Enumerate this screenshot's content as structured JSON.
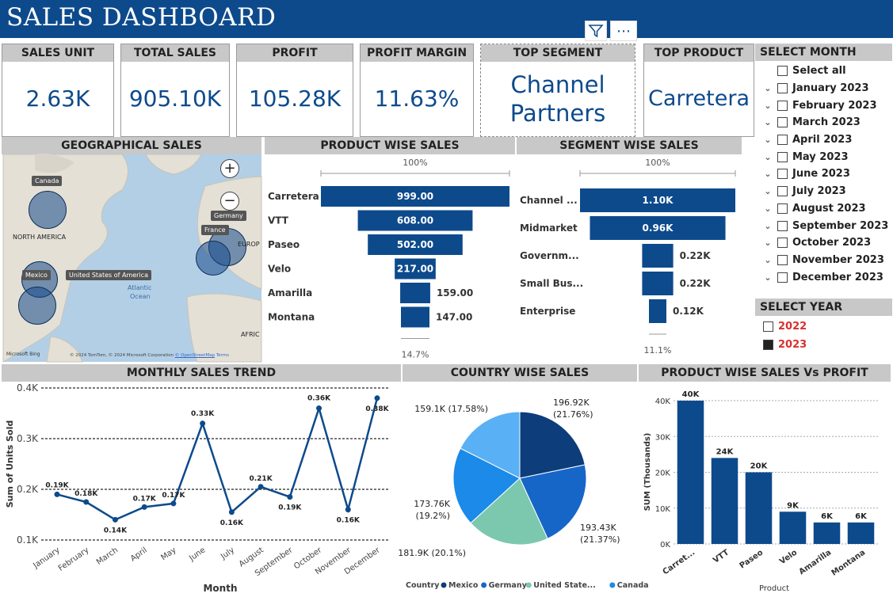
{
  "header": {
    "title": "SALES DASHBOARD",
    "filter_icon": "filter-icon",
    "more_label": "⋯"
  },
  "kpis": [
    {
      "label": "SALES UNIT",
      "value": "2.63K"
    },
    {
      "label": "TOTAL SALES",
      "value": "905.10K"
    },
    {
      "label": "PROFIT",
      "value": "105.28K"
    },
    {
      "label": "PROFIT MARGIN",
      "value": "11.63%"
    },
    {
      "label": "TOP SEGMENT",
      "value": "Channel Partners"
    },
    {
      "label": "TOP PRODUCT",
      "value": "Carretera"
    }
  ],
  "sections": {
    "geo": "GEOGRAPHICAL SALES",
    "product": "PRODUCT WISE SALES",
    "segment": "SEGMENT WISE SALES",
    "monthly": "MONTHLY SALES TREND",
    "country": "COUNTRY WISE SALES",
    "prodprofit": "PRODUCT WISE SALES Vs PROFIT"
  },
  "map": {
    "labels": [
      "Canada",
      "NORTH AMERICA",
      "Germany",
      "France",
      "EUROP",
      "Mexico",
      "United States of America",
      "Atlantic",
      "Ocean",
      "AFRIC"
    ],
    "zoom_in": "+",
    "zoom_out": "−",
    "logo": "Microsoft Bing",
    "copyright": "© 2024 TomTom, © 2024 Microsoft Corporation",
    "osm": "© OpenStreetMap",
    "terms": "Terms"
  },
  "month_slicer": {
    "title": "SELECT MONTH",
    "select_all": "Select all",
    "months": [
      "January 2023",
      "February 2023",
      "March 2023",
      "April 2023",
      "May 2023",
      "June 2023",
      "July 2023",
      "August 2023",
      "September 2023",
      "October 2023",
      "November 2023",
      "December 2023"
    ]
  },
  "year_slicer": {
    "title": "SELECT YEAR",
    "years": [
      {
        "label": "2022",
        "checked": false
      },
      {
        "label": "2023",
        "checked": true
      }
    ],
    "text_color": "#d9302c"
  },
  "chart_data": [
    {
      "id": "product-funnel",
      "type": "bar",
      "subtype": "funnel",
      "top_label": "100%",
      "bottom_label": "14.7%",
      "categories": [
        "Carretera",
        "VTT",
        "Paseo",
        "Velo",
        "Amarilla",
        "Montana"
      ],
      "values": [
        999,
        608,
        502,
        217,
        159,
        147
      ],
      "value_labels": [
        "999.00",
        "608.00",
        "502.00",
        "217.00",
        "159.00",
        "147.00"
      ],
      "color": "#0d4a8c"
    },
    {
      "id": "segment-funnel",
      "type": "bar",
      "subtype": "funnel",
      "top_label": "100%",
      "bottom_label": "11.1%",
      "categories": [
        "Channel ...",
        "Midmarket",
        "Governm...",
        "Small Bus...",
        "Enterprise"
      ],
      "values": [
        1100,
        960,
        220,
        220,
        120
      ],
      "value_labels": [
        "1.10K",
        "0.96K",
        "0.22K",
        "0.22K",
        "0.12K"
      ],
      "color": "#0d4a8c"
    },
    {
      "id": "monthly-trend",
      "type": "line",
      "xlabel": "Month",
      "ylabel": "Sum of Units Sold",
      "ylim": [
        0.1,
        0.4
      ],
      "yticks": [
        "0.1K",
        "0.2K",
        "0.3K",
        "0.4K"
      ],
      "categories": [
        "January",
        "February",
        "March",
        "April",
        "May",
        "June",
        "July",
        "August",
        "September",
        "October",
        "November",
        "December"
      ],
      "values": [
        0.19,
        0.175,
        0.14,
        0.165,
        0.172,
        0.33,
        0.155,
        0.205,
        0.185,
        0.36,
        0.16,
        0.38
      ],
      "value_labels": [
        "0.19K",
        "0.18K",
        "0.14K",
        "0.17K",
        "0.17K",
        "0.33K",
        "0.16K",
        "0.21K",
        "0.19K",
        "0.36K",
        "0.16K",
        "0.38K"
      ],
      "color": "#0d4a8c",
      "grid": true
    },
    {
      "id": "country-pie",
      "type": "pie",
      "legend_title": "Country",
      "legend_position": "bottom",
      "slices": [
        {
          "name": "Mexico",
          "value": 196.92,
          "label": "196.92K\n(21.76%)",
          "color": "#0d3d7a"
        },
        {
          "name": "Germany",
          "value": 193.43,
          "label": "193.43K\n(21.37%)",
          "color": "#1666c8"
        },
        {
          "name": "United State...",
          "value": 181.9,
          "label": "181.9K (20.1%)",
          "color": "#7cc8ae"
        },
        {
          "name": "Canada",
          "value": 173.76,
          "label": "173.76K\n(19.2%)",
          "color": "#1b8ae8"
        },
        {
          "name": "",
          "value": 159.1,
          "label": "159.1K (17.58%)",
          "color": "#59b0f5"
        }
      ]
    },
    {
      "id": "product-profit",
      "type": "bar",
      "xlabel": "Product",
      "ylabel": "SUM (Thousands)",
      "ylim": [
        0,
        40
      ],
      "yticks": [
        "0K",
        "10K",
        "20K",
        "30K",
        "40K"
      ],
      "categories": [
        "Carret...",
        "VTT",
        "Paseo",
        "Velo",
        "Amarilla",
        "Montana"
      ],
      "values": [
        40,
        24,
        20,
        9,
        6,
        6
      ],
      "value_labels": [
        "40K",
        "24K",
        "20K",
        "9K",
        "6K",
        "6K"
      ],
      "color": "#0d4a8c"
    }
  ]
}
